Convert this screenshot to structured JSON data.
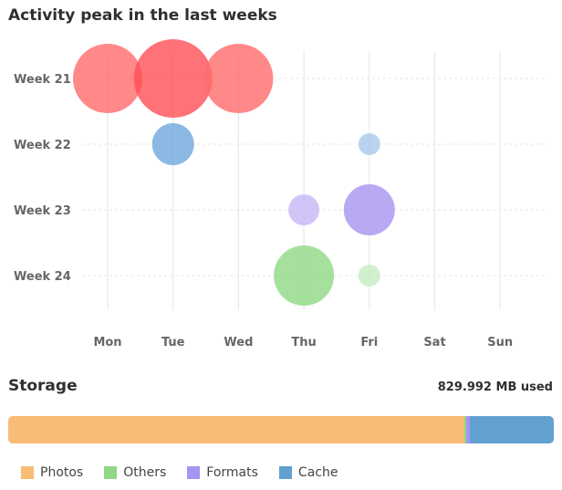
{
  "chart_data": {
    "type": "scatter",
    "title": "Activity peak in the last weeks",
    "x_categories": [
      "Mon",
      "Tue",
      "Wed",
      "Thu",
      "Fri",
      "Sat",
      "Sun"
    ],
    "y_categories": [
      "Week 21",
      "Week 22",
      "Week 23",
      "Week 24"
    ],
    "grid": true,
    "points": [
      {
        "x": "Mon",
        "y": "Week 21",
        "size": 38,
        "color": "#ff6b6b"
      },
      {
        "x": "Tue",
        "y": "Week 21",
        "size": 43,
        "color": "#ff4f56"
      },
      {
        "x": "Wed",
        "y": "Week 21",
        "size": 38,
        "color": "#ff6b6b"
      },
      {
        "x": "Tue",
        "y": "Week 22",
        "size": 23,
        "color": "#6fa8dc"
      },
      {
        "x": "Fri",
        "y": "Week 22",
        "size": 12,
        "color": "#a9c9ec"
      },
      {
        "x": "Thu",
        "y": "Week 23",
        "size": 17,
        "color": "#c5b6f5"
      },
      {
        "x": "Fri",
        "y": "Week 23",
        "size": 28,
        "color": "#a794f0"
      },
      {
        "x": "Thu",
        "y": "Week 24",
        "size": 33,
        "color": "#8fd985"
      },
      {
        "x": "Fri",
        "y": "Week 24",
        "size": 12,
        "color": "#c6ecc1"
      }
    ]
  },
  "storage": {
    "title": "Storage",
    "used_text": "829.992 MB used",
    "segments": [
      {
        "name": "Photos",
        "fraction": 0.8366,
        "color": "#f9bc76"
      },
      {
        "name": "Others",
        "fraction": 0.0033,
        "color": "#8fd985"
      },
      {
        "name": "Formats",
        "fraction": 0.0067,
        "color": "#a794f0"
      },
      {
        "name": "Cache",
        "fraction": 0.1534,
        "color": "#62a0d0"
      }
    ]
  },
  "legend": [
    {
      "label": "Photos",
      "color": "#f9bc76"
    },
    {
      "label": "Others",
      "color": "#8fd985"
    },
    {
      "label": "Formats",
      "color": "#a794f0"
    },
    {
      "label": "Cache",
      "color": "#62a0d0"
    }
  ]
}
